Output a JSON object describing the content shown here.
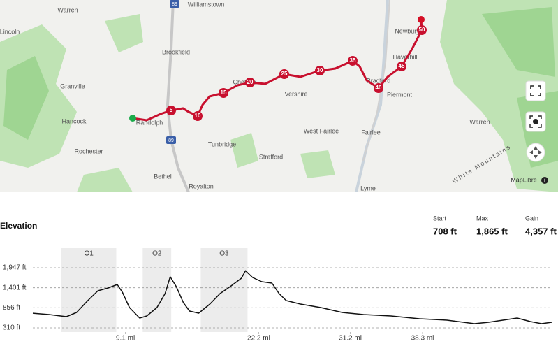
{
  "map": {
    "places": [
      "Warren",
      "Williamstown",
      "Lincoln",
      "Brookfield",
      "Granville",
      "Hancock",
      "Randolph",
      "Rochester",
      "Bethel",
      "Royalton",
      "Tunbridge",
      "Strafford",
      "Chelsea",
      "Vershire",
      "West Fairlee",
      "Fairlee",
      "Bradford",
      "Piermont",
      "Haverhill",
      "Newbury",
      "Lyme",
      "Warren",
      "White Mountains"
    ],
    "highways": [
      "89",
      "89"
    ],
    "route_markers": [
      "5",
      "10",
      "15",
      "20",
      "25",
      "30",
      "35",
      "40",
      "45",
      "50"
    ],
    "attribution": "MapLibre"
  },
  "elevation": {
    "title": "Elevation",
    "stats": [
      {
        "label": "Start",
        "value": "708 ft"
      },
      {
        "label": "Max",
        "value": "1,865 ft"
      },
      {
        "label": "Gain",
        "value": "4,357 ft"
      }
    ]
  },
  "chart_data": {
    "type": "line",
    "color": "#111111",
    "x": [
      0,
      1.6,
      3.3,
      4.3,
      5.4,
      6.4,
      7.4,
      8.3,
      8.8,
      9.5,
      10.5,
      11.2,
      12.2,
      13.0,
      13.5,
      14.1,
      14.8,
      15.4,
      16.3,
      17.4,
      18.4,
      19.4,
      20.5,
      20.9,
      21.6,
      22.5,
      23.5,
      24.2,
      24.9,
      26.3,
      28.3,
      30.4,
      32.5,
      35.2,
      38.0,
      40.7,
      43.4,
      44.8,
      47.6,
      48.9,
      50.0,
      51.0
    ],
    "values": [
      708,
      672,
      615,
      729,
      1052,
      1319,
      1395,
      1490,
      1281,
      862,
      576,
      634,
      862,
      1243,
      1700,
      1433,
      995,
      767,
      710,
      957,
      1243,
      1433,
      1661,
      1865,
      1681,
      1566,
      1528,
      1243,
      1052,
      957,
      862,
      729,
      672,
      634,
      557,
      519,
      424,
      462,
      576,
      481,
      424,
      462
    ],
    "xlim": [
      0,
      51
    ],
    "ylim": [
      196,
      2480
    ],
    "yticks": [
      {
        "value": 310,
        "label": "310 ft"
      },
      {
        "value": 856,
        "label": "856 ft"
      },
      {
        "value": 1401,
        "label": "1,401 ft"
      },
      {
        "value": 1947,
        "label": "1,947 ft"
      }
    ],
    "xticks": [
      {
        "value": 9.1,
        "label": "9.1 mi"
      },
      {
        "value": 22.2,
        "label": "22.2 mi"
      },
      {
        "value": 31.2,
        "label": "31.2 mi"
      },
      {
        "value": 38.3,
        "label": "38.3 mi"
      }
    ],
    "grid": true,
    "segments": [
      {
        "name": "O1",
        "start": 2.8,
        "end": 8.2
      },
      {
        "name": "O2",
        "start": 10.8,
        "end": 13.6
      },
      {
        "name": "O3",
        "start": 16.5,
        "end": 21.1
      }
    ]
  }
}
